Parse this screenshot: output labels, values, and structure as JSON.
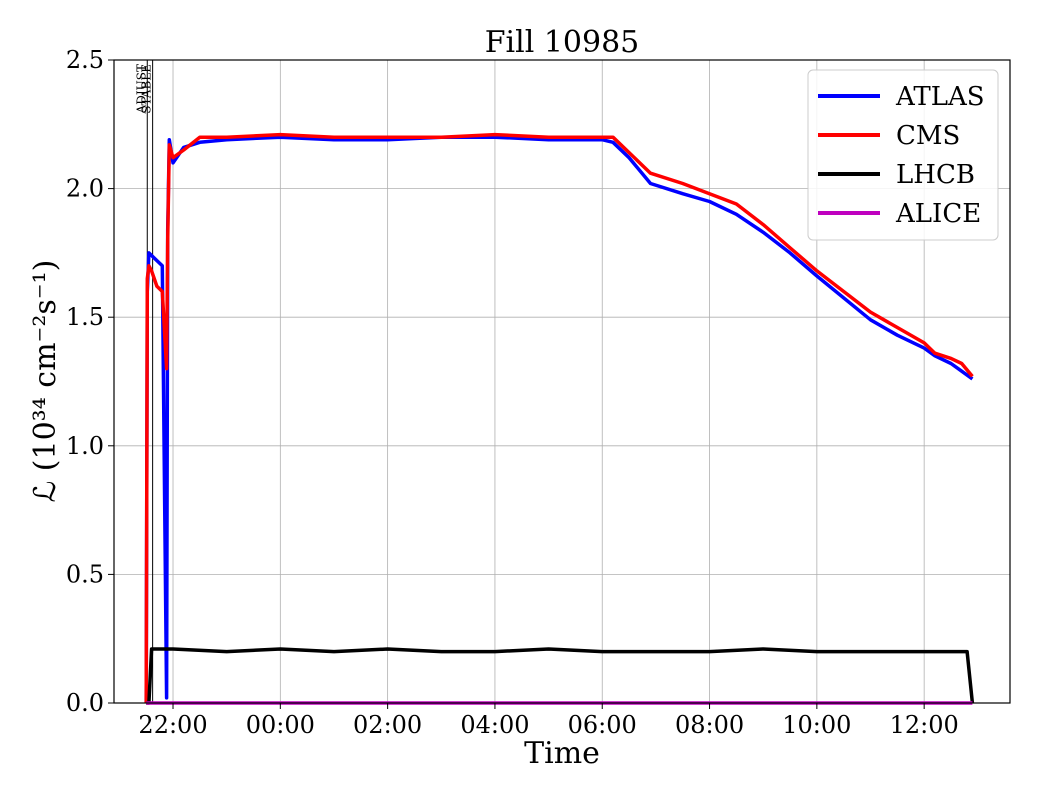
{
  "chart_data": {
    "type": "line",
    "title": "Fill 10985",
    "xlabel": "Time",
    "ylabel": "ℒ (10³⁴ cm⁻²s⁻¹)",
    "xlim_hours": [
      20.9,
      37.6
    ],
    "x_ticks": [
      {
        "value": 22,
        "label": "22:00"
      },
      {
        "value": 24,
        "label": "00:00"
      },
      {
        "value": 26,
        "label": "02:00"
      },
      {
        "value": 28,
        "label": "04:00"
      },
      {
        "value": 30,
        "label": "06:00"
      },
      {
        "value": 32,
        "label": "08:00"
      },
      {
        "value": 34,
        "label": "10:00"
      },
      {
        "value": 36,
        "label": "12:00"
      }
    ],
    "ylim": [
      0.0,
      2.5
    ],
    "y_ticks": [
      {
        "value": 0.0,
        "label": "0.0"
      },
      {
        "value": 0.5,
        "label": "0.5"
      },
      {
        "value": 1.0,
        "label": "1.0"
      },
      {
        "value": 1.5,
        "label": "1.5"
      },
      {
        "value": 2.0,
        "label": "2.0"
      },
      {
        "value": 2.5,
        "label": "2.5"
      }
    ],
    "grid": true,
    "legend_position": "top-right",
    "vertical_markers": [
      {
        "x": 21.52,
        "label": "ADJUST"
      },
      {
        "x": 21.62,
        "label": "STABLE"
      }
    ],
    "series": [
      {
        "name": "ATLAS",
        "color": "#0000ff",
        "x": [
          21.5,
          21.52,
          21.55,
          21.6,
          21.7,
          21.8,
          21.88,
          21.9,
          21.93,
          22.0,
          22.2,
          22.5,
          23.0,
          24.0,
          25.0,
          26.0,
          27.0,
          28.0,
          29.0,
          30.0,
          30.2,
          30.5,
          30.9,
          31.5,
          32.0,
          32.5,
          33.0,
          33.5,
          34.0,
          35.0,
          35.5,
          36.0,
          36.2,
          36.5,
          36.7,
          36.9
        ],
        "y": [
          0.0,
          1.6,
          1.75,
          1.74,
          1.72,
          1.7,
          0.02,
          1.84,
          2.19,
          2.1,
          2.16,
          2.18,
          2.19,
          2.2,
          2.19,
          2.19,
          2.2,
          2.2,
          2.19,
          2.19,
          2.18,
          2.12,
          2.02,
          1.98,
          1.95,
          1.9,
          1.83,
          1.75,
          1.66,
          1.49,
          1.43,
          1.38,
          1.35,
          1.32,
          1.29,
          1.26
        ]
      },
      {
        "name": "CMS",
        "color": "#ff0000",
        "x": [
          21.5,
          21.52,
          21.55,
          21.6,
          21.7,
          21.8,
          21.88,
          21.9,
          21.93,
          22.0,
          22.2,
          22.5,
          23.0,
          24.0,
          25.0,
          26.0,
          27.0,
          28.0,
          29.0,
          30.0,
          30.2,
          30.5,
          30.9,
          31.5,
          32.0,
          32.5,
          33.0,
          33.5,
          34.0,
          35.0,
          35.5,
          36.0,
          36.2,
          36.5,
          36.7,
          36.9
        ],
        "y": [
          0.0,
          1.65,
          1.7,
          1.68,
          1.62,
          1.6,
          1.3,
          1.8,
          2.17,
          2.12,
          2.15,
          2.2,
          2.2,
          2.21,
          2.2,
          2.2,
          2.2,
          2.21,
          2.2,
          2.2,
          2.2,
          2.14,
          2.06,
          2.02,
          1.98,
          1.94,
          1.86,
          1.77,
          1.68,
          1.52,
          1.46,
          1.4,
          1.36,
          1.34,
          1.32,
          1.27
        ]
      },
      {
        "name": "LHCB",
        "color": "#000000",
        "x": [
          21.5,
          21.55,
          21.6,
          21.7,
          22.0,
          23.0,
          24.0,
          25.0,
          26.0,
          27.0,
          28.0,
          29.0,
          30.0,
          31.0,
          32.0,
          33.0,
          34.0,
          35.0,
          36.0,
          36.5,
          36.7,
          36.8,
          36.9
        ],
        "y": [
          0.0,
          0.0,
          0.21,
          0.21,
          0.21,
          0.2,
          0.21,
          0.2,
          0.21,
          0.2,
          0.2,
          0.21,
          0.2,
          0.2,
          0.2,
          0.21,
          0.2,
          0.2,
          0.2,
          0.2,
          0.2,
          0.2,
          0.0
        ]
      },
      {
        "name": "ALICE",
        "color": "#bf00bf",
        "x": [
          21.5,
          36.9
        ],
        "y": [
          0.0,
          0.0
        ]
      }
    ]
  }
}
